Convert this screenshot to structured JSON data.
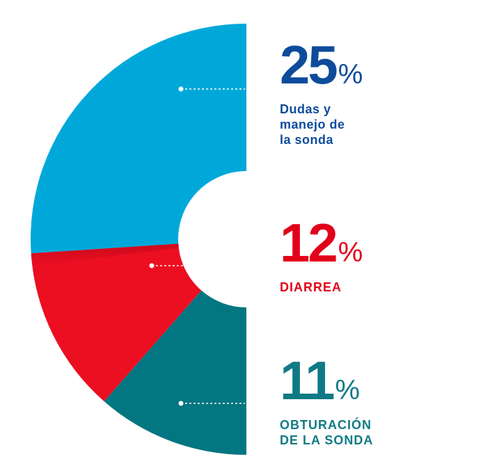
{
  "chart_data": {
    "type": "pie",
    "variant": "half-donut",
    "title": "",
    "slices": [
      {
        "label": "Dudas y manejo de la sonda",
        "value": 25,
        "color": "#00A8DA",
        "text_color": "#0D4C9B"
      },
      {
        "label": "DIARREA",
        "value": 12,
        "color": "#EC0E21",
        "text_color": "#E2001A"
      },
      {
        "label": "OBTURACIÓN DE LA SONDA",
        "value": 11,
        "color": "#027681",
        "text_color": "#0F7A84"
      }
    ]
  },
  "labels": [
    {
      "number": "25",
      "percent_sign": "%",
      "description": "Dudas  y\nmanejo de\nla sonda"
    },
    {
      "number": "12",
      "percent_sign": "%",
      "description": "DIARREA"
    },
    {
      "number": "11",
      "percent_sign": "%",
      "description": "OBTURACIÓN\nDE LA SONDA"
    }
  ],
  "colors": {
    "background": "#FFFFFF",
    "leader_line": "#FFFFFF"
  }
}
